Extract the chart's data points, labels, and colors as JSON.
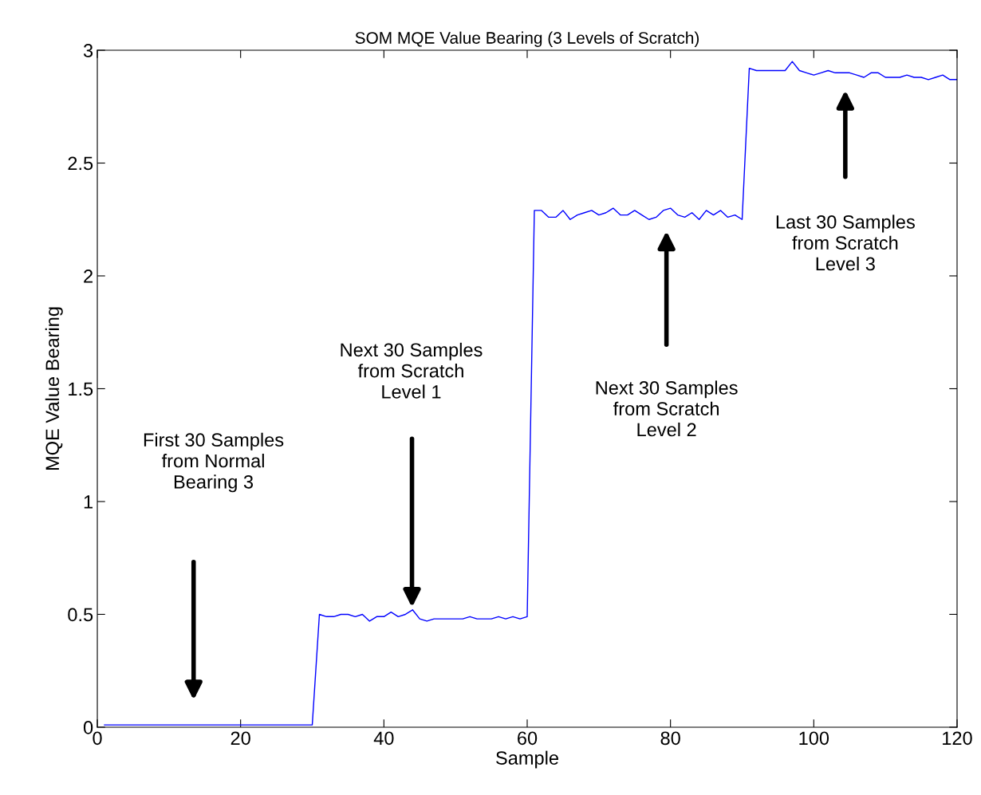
{
  "chart_data": {
    "type": "line",
    "title": "SOM MQE Value Bearing (3 Levels of Scratch)",
    "xlabel": "Sample",
    "ylabel": "MQE Value Bearing",
    "x": [
      1,
      2,
      3,
      4,
      5,
      6,
      7,
      8,
      9,
      10,
      11,
      12,
      13,
      14,
      15,
      16,
      17,
      18,
      19,
      20,
      21,
      22,
      23,
      24,
      25,
      26,
      27,
      28,
      29,
      30,
      31,
      32,
      33,
      34,
      35,
      36,
      37,
      38,
      39,
      40,
      41,
      42,
      43,
      44,
      45,
      46,
      47,
      48,
      49,
      50,
      51,
      52,
      53,
      54,
      55,
      56,
      57,
      58,
      59,
      60,
      61,
      62,
      63,
      64,
      65,
      66,
      67,
      68,
      69,
      70,
      71,
      72,
      73,
      74,
      75,
      76,
      77,
      78,
      79,
      80,
      81,
      82,
      83,
      84,
      85,
      86,
      87,
      88,
      89,
      90,
      91,
      92,
      93,
      94,
      95,
      96,
      97,
      98,
      99,
      100,
      101,
      102,
      103,
      104,
      105,
      106,
      107,
      108,
      109,
      110,
      111,
      112,
      113,
      114,
      115,
      116,
      117,
      118,
      119,
      120
    ],
    "series": [
      {
        "color": "#0000ff",
        "values": [
          0.01,
          0.01,
          0.01,
          0.01,
          0.01,
          0.01,
          0.01,
          0.01,
          0.01,
          0.01,
          0.01,
          0.01,
          0.01,
          0.01,
          0.01,
          0.01,
          0.01,
          0.01,
          0.01,
          0.01,
          0.01,
          0.01,
          0.01,
          0.01,
          0.01,
          0.01,
          0.01,
          0.01,
          0.01,
          0.01,
          0.5,
          0.49,
          0.49,
          0.5,
          0.5,
          0.49,
          0.5,
          0.47,
          0.49,
          0.49,
          0.51,
          0.49,
          0.5,
          0.52,
          0.48,
          0.47,
          0.48,
          0.48,
          0.48,
          0.48,
          0.48,
          0.49,
          0.48,
          0.48,
          0.48,
          0.49,
          0.48,
          0.49,
          0.48,
          0.49,
          2.29,
          2.29,
          2.26,
          2.26,
          2.29,
          2.25,
          2.27,
          2.28,
          2.29,
          2.27,
          2.28,
          2.3,
          2.27,
          2.27,
          2.29,
          2.27,
          2.25,
          2.26,
          2.29,
          2.3,
          2.27,
          2.26,
          2.28,
          2.25,
          2.29,
          2.27,
          2.29,
          2.26,
          2.27,
          2.25,
          2.92,
          2.91,
          2.91,
          2.91,
          2.91,
          2.91,
          2.95,
          2.91,
          2.9,
          2.89,
          2.9,
          2.91,
          2.9,
          2.9,
          2.9,
          2.89,
          2.88,
          2.9,
          2.9,
          2.88,
          2.88,
          2.88,
          2.89,
          2.88,
          2.88,
          2.87,
          2.88,
          2.89,
          2.87,
          2.87
        ]
      }
    ],
    "xlim": [
      0,
      120
    ],
    "xticks": [
      0,
      20,
      40,
      60,
      80,
      100,
      120
    ],
    "ylim": [
      0,
      3
    ],
    "yticks": [
      0,
      0.5,
      1,
      1.5,
      2,
      2.5,
      3
    ],
    "grid": false,
    "legend": false,
    "marker": "none",
    "line_style": "solid",
    "annotations": [
      "First 30 Samples\nfrom Normal\nBearing 3",
      "Next 30 Samples\nfrom Scratch\nLevel 1",
      "Next 30 Samples\nfrom Scratch\nLevel 2",
      "Last 30 Samples\nfrom Scratch\nLevel 3"
    ]
  }
}
